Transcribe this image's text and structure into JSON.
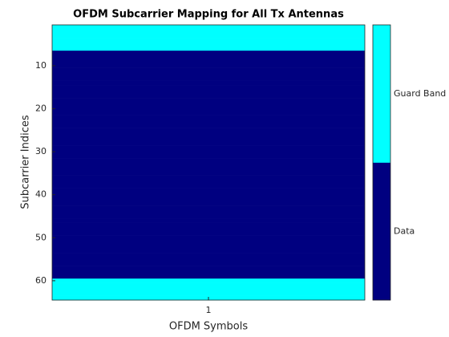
{
  "chart_data": {
    "type": "heatmap",
    "title": "OFDM Subcarrier Mapping for All Tx Antennas",
    "x_label": "OFDM Symbols",
    "y_label": "Subcarrier Indices",
    "x": [
      1
    ],
    "xlim": [
      0.5,
      1.5
    ],
    "xticks": [
      1
    ],
    "ylim": [
      0.5,
      64.5
    ],
    "yticks": [
      10,
      20,
      30,
      40,
      50,
      60
    ],
    "y_reversed": true,
    "z": [
      [
        1,
        1,
        1,
        1,
        1,
        1,
        0,
        0,
        0,
        0,
        0,
        0,
        0,
        0,
        0,
        0,
        0,
        0,
        0,
        0,
        0,
        0,
        0,
        0,
        0,
        0,
        0,
        0,
        0,
        0,
        0,
        0,
        0,
        0,
        0,
        0,
        0,
        0,
        0,
        0,
        0,
        0,
        0,
        0,
        0,
        0,
        0,
        0,
        0,
        0,
        0,
        0,
        0,
        0,
        0,
        0,
        0,
        0,
        0,
        1,
        1,
        1,
        1,
        1
      ]
    ],
    "colorbar": {
      "labels": [
        "Data",
        "Guard Band"
      ],
      "colors": [
        "#000080",
        "#00ffff"
      ]
    }
  }
}
